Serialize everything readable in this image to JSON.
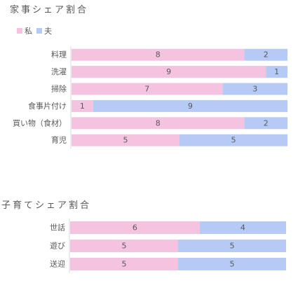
{
  "colors": {
    "me": "#f4c3df",
    "husband": "#b5caf4",
    "axis": "#d9d9d9",
    "text": "#595959"
  },
  "chart_data": [
    {
      "type": "bar",
      "orientation": "horizontal",
      "stacked": true,
      "title": "家事シェア割合",
      "legend_position": "top-left",
      "categories": [
        "料理",
        "洗濯",
        "掃除",
        "食事片付け",
        "買い物（食材）",
        "育児"
      ],
      "series": [
        {
          "name": "私",
          "values": [
            8,
            9,
            7,
            1,
            8,
            5
          ]
        },
        {
          "name": "夫",
          "values": [
            2,
            1,
            3,
            9,
            2,
            5
          ]
        }
      ],
      "xlim": [
        0,
        10
      ],
      "grid": false,
      "data_labels": true
    },
    {
      "type": "bar",
      "orientation": "horizontal",
      "stacked": true,
      "title": "子育てシェア割合",
      "categories": [
        "世話",
        "遊び",
        "送迎"
      ],
      "series": [
        {
          "name": "私",
          "values": [
            6,
            5,
            5
          ]
        },
        {
          "name": "夫",
          "values": [
            4,
            5,
            5
          ]
        }
      ],
      "xlim": [
        0,
        10
      ],
      "grid": false,
      "data_labels": true
    }
  ]
}
